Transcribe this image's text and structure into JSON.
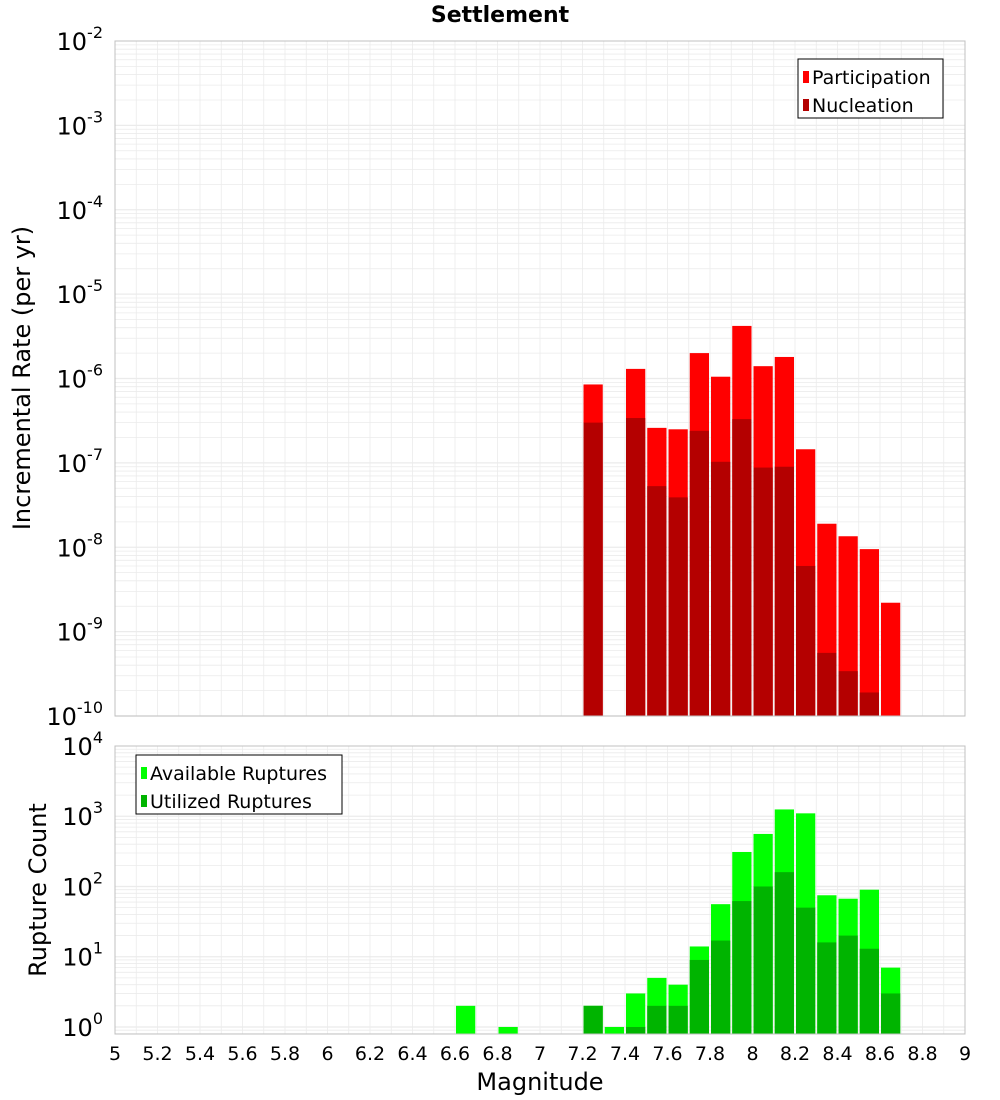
{
  "title": "Settlement",
  "colors": {
    "participation": "#ff0000",
    "nucleation": "#b40000",
    "available": "#00ff00",
    "utilized": "#00b400",
    "grid": "#ebebeb",
    "frame": "#c0c0c0"
  },
  "chart_data": [
    {
      "type": "bar",
      "subplot": "top",
      "ylabel": "Incremental Rate (per yr)",
      "yscale": "log",
      "ylim_exponents": [
        -10,
        -2
      ],
      "ytick_exponents": [
        -10,
        -9,
        -8,
        -7,
        -6,
        -5,
        -4,
        -3,
        -2
      ],
      "xlim": [
        5,
        9
      ],
      "legend_position": "top-right",
      "x": [
        7.25,
        7.45,
        7.55,
        7.65,
        7.75,
        7.85,
        7.95,
        8.05,
        8.15,
        8.25,
        8.35,
        8.45,
        8.55,
        8.65
      ],
      "series": [
        {
          "name": "Participation",
          "color_key": "participation",
          "values": [
            8.5e-07,
            1.3e-06,
            2.6e-07,
            2.5e-07,
            2e-06,
            1.05e-06,
            4.2e-06,
            1.4e-06,
            1.8e-06,
            1.45e-07,
            1.9e-08,
            1.35e-08,
            9.5e-09,
            2.2e-09
          ]
        },
        {
          "name": "Nucleation",
          "color_key": "nucleation",
          "values": [
            3e-07,
            3.4e-07,
            5.3e-08,
            3.9e-08,
            2.4e-07,
            1.03e-07,
            3.3e-07,
            8.8e-08,
            9e-08,
            6e-09,
            5.6e-10,
            3.4e-10,
            1.9e-10,
            null
          ]
        }
      ]
    },
    {
      "type": "bar",
      "subplot": "bottom",
      "xlabel": "Magnitude",
      "ylabel": "Rupture Count",
      "yscale": "log",
      "ylim_exponents": [
        -0.1,
        4
      ],
      "ytick_exponents": [
        0,
        1,
        2,
        3,
        4
      ],
      "xlim": [
        5,
        9
      ],
      "xticks": [
        "5",
        "5.2",
        "5.4",
        "5.6",
        "5.8",
        "6",
        "6.2",
        "6.4",
        "6.6",
        "6.8",
        "7",
        "7.2",
        "7.4",
        "7.6",
        "7.8",
        "8",
        "8.2",
        "8.4",
        "8.6",
        "8.8",
        "9"
      ],
      "legend_position": "top-left",
      "x": [
        6.65,
        6.85,
        7.25,
        7.35,
        7.45,
        7.55,
        7.65,
        7.75,
        7.85,
        7.95,
        8.05,
        8.15,
        8.25,
        8.35,
        8.45,
        8.55,
        8.65
      ],
      "series": [
        {
          "name": "Available Ruptures",
          "color_key": "available",
          "values": [
            2,
            1,
            2,
            1,
            3,
            5,
            4,
            14,
            56,
            310,
            560,
            1250,
            1100,
            75,
            67,
            90,
            7
          ]
        },
        {
          "name": "Utilized Ruptures",
          "color_key": "utilized",
          "values": [
            null,
            null,
            2,
            null,
            1,
            2,
            2,
            9,
            17,
            62,
            100,
            160,
            50,
            16,
            20,
            13,
            3
          ]
        }
      ]
    }
  ]
}
